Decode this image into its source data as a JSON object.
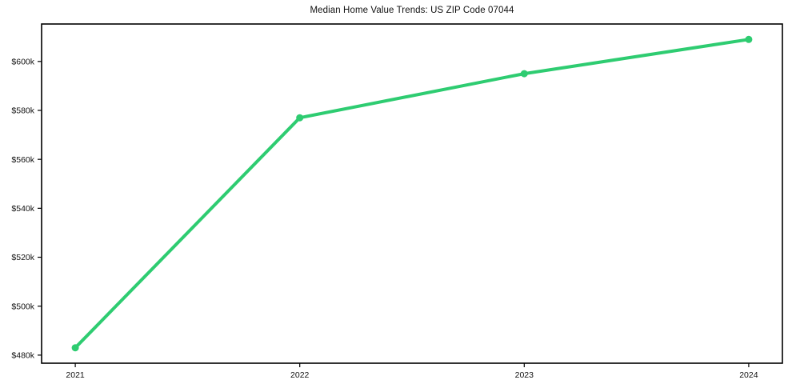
{
  "figure": {
    "background_color": "#ffffff"
  },
  "chart_data": {
    "type": "line",
    "title": "Median Home Value Trends: US ZIP Code 07044",
    "x": [
      2021,
      2022,
      2023,
      2024
    ],
    "x_tick_labels": [
      "2021",
      "2022",
      "2023",
      "2024"
    ],
    "series": [
      {
        "name": "Median Home Value",
        "values": [
          483000,
          577000,
          595000,
          609000
        ],
        "color": "#2ecc71",
        "marker": "circle"
      }
    ],
    "y_ticks": [
      {
        "value": 480000,
        "label": "$480k"
      },
      {
        "value": 500000,
        "label": "$500k"
      },
      {
        "value": 520000,
        "label": "$520k"
      },
      {
        "value": 540000,
        "label": "$540k"
      },
      {
        "value": 560000,
        "label": "$560k"
      },
      {
        "value": 580000,
        "label": "$580k"
      },
      {
        "value": 600000,
        "label": "$600k"
      },
      {
        "value": 620000,
        "label": null
      }
    ],
    "xlim": [
      2020.85,
      2024.15
    ],
    "ylim": [
      476700,
      615300
    ],
    "xlabel": "",
    "ylabel": "",
    "grid": false,
    "legend_position": "none",
    "axis_color": "#000000",
    "text_color": "#111111",
    "line_width": 4,
    "marker_size": 9
  }
}
